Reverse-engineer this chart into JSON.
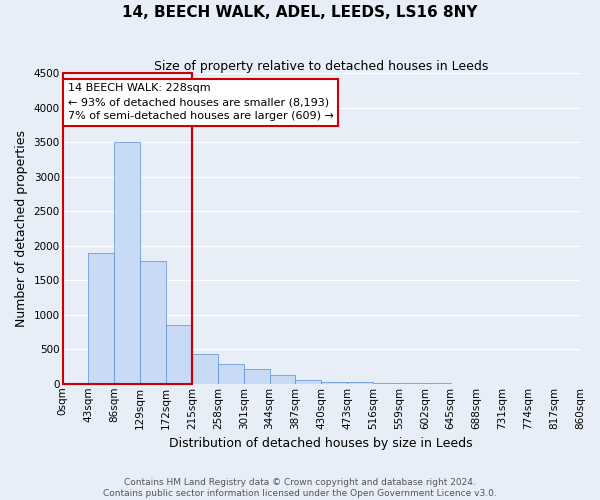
{
  "title": "14, BEECH WALK, ADEL, LEEDS, LS16 8NY",
  "subtitle": "Size of property relative to detached houses in Leeds",
  "xlabel": "Distribution of detached houses by size in Leeds",
  "ylabel": "Number of detached properties",
  "bar_values": [
    0,
    1900,
    3500,
    1780,
    850,
    430,
    290,
    210,
    130,
    50,
    30,
    20,
    10,
    5,
    5,
    2,
    2,
    1,
    1,
    0
  ],
  "bin_labels": [
    "0sqm",
    "43sqm",
    "86sqm",
    "129sqm",
    "172sqm",
    "215sqm",
    "258sqm",
    "301sqm",
    "344sqm",
    "387sqm",
    "430sqm",
    "473sqm",
    "516sqm",
    "559sqm",
    "602sqm",
    "645sqm",
    "688sqm",
    "731sqm",
    "774sqm",
    "817sqm",
    "860sqm"
  ],
  "bar_color": "#c8daf5",
  "bar_edge_color": "#5a8ed4",
  "vline_color": "#cc0000",
  "annotation_text": "14 BEECH WALK: 228sqm\n← 93% of detached houses are smaller (8,193)\n7% of semi-detached houses are larger (609) →",
  "annotation_box_color": "#ffffff",
  "annotation_box_edge": "#cc0000",
  "ylim": [
    0,
    4500
  ],
  "background_color": "#e8eef8",
  "grid_color": "#ffffff",
  "footnote": "Contains HM Land Registry data © Crown copyright and database right 2024.\nContains public sector information licensed under the Open Government Licence v3.0.",
  "title_fontsize": 11,
  "subtitle_fontsize": 9,
  "axis_label_fontsize": 9,
  "tick_fontsize": 7.5,
  "annotation_fontsize": 8
}
